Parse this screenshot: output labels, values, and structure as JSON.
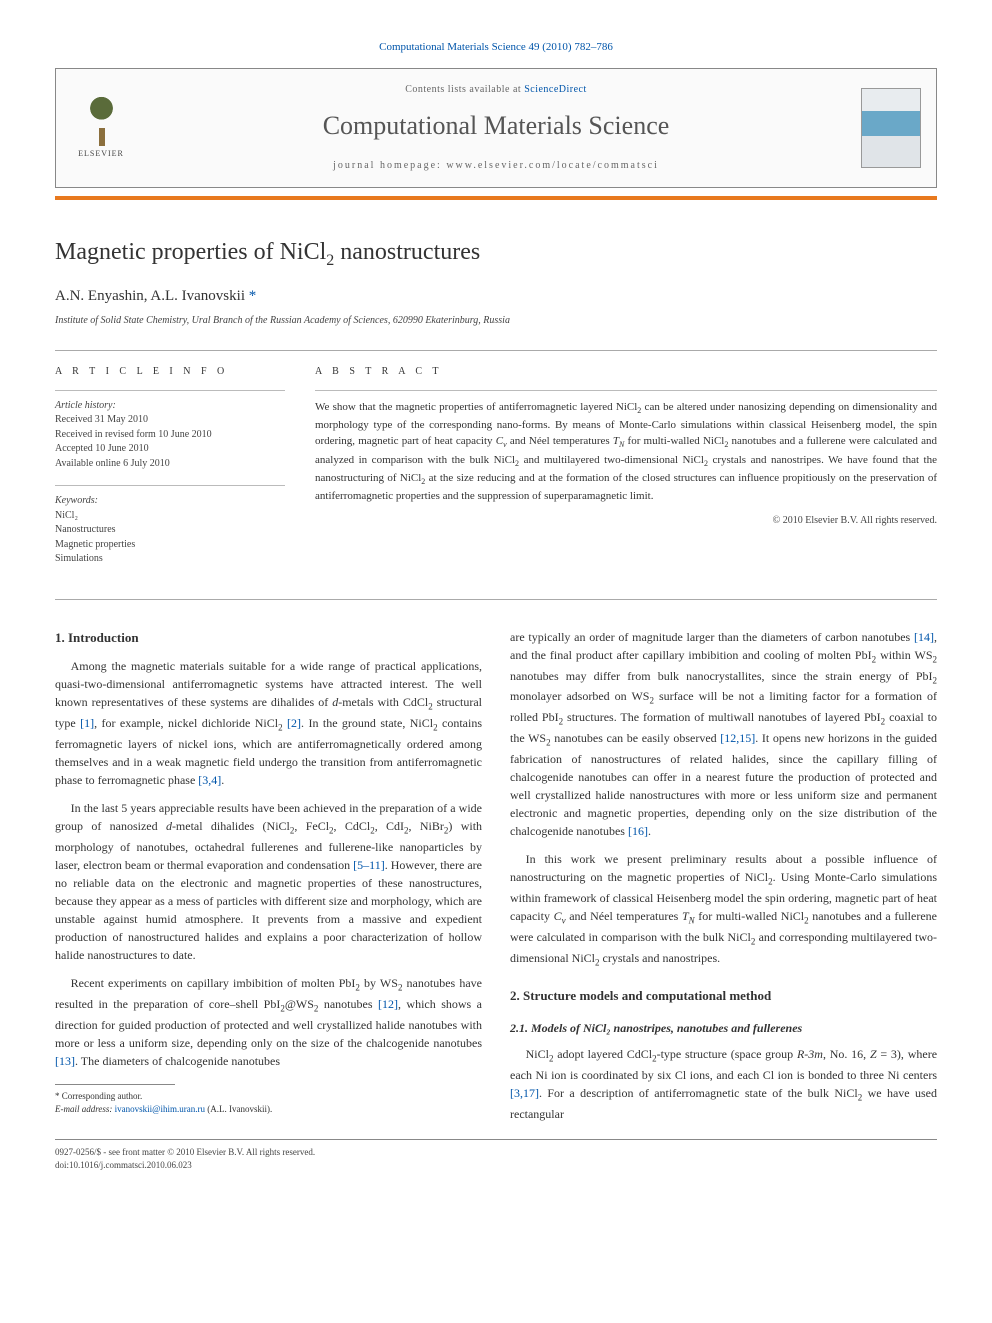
{
  "journal_ref": {
    "text_before": "Computational Materials Science 49 (2010) 782–786",
    "link_label": ""
  },
  "header": {
    "contents_prefix": "Contents lists available at ",
    "contents_link": "ScienceDirect",
    "journal_name": "Computational Materials Science",
    "homepage_prefix": "journal homepage: ",
    "homepage_url": "www.elsevier.com/locate/commatsci",
    "publisher": "ELSEVIER"
  },
  "title_html": "Magnetic properties of NiCl<sub>2</sub> nanostructures",
  "authors_html": "A.N. Enyashin, A.L. Ivanovskii <a href='#'>*</a>",
  "affiliation": "Institute of Solid State Chemistry, Ural Branch of the Russian Academy of Sciences, 620990 Ekaterinburg, Russia",
  "article_info": {
    "heading": "A R T I C L E   I N F O",
    "history_label": "Article history:",
    "history": [
      "Received 31 May 2010",
      "Received in revised form 10 June 2010",
      "Accepted 10 June 2010",
      "Available online 6 July 2010"
    ],
    "keywords_label": "Keywords:",
    "keywords": [
      "NiCl₂",
      "Nanostructures",
      "Magnetic properties",
      "Simulations"
    ]
  },
  "abstract": {
    "heading": "A B S T R A C T",
    "text_html": "We show that the magnetic properties of antiferromagnetic layered NiCl<sub>2</sub> can be altered under nanosizing depending on dimensionality and morphology type of the corresponding nano-forms. By means of Monte-Carlo simulations within classical Heisenberg model, the spin ordering, magnetic part of heat capacity <i>C<sub>v</sub></i> and Néel temperatures <i>T<sub>N</sub></i> for multi-walled NiCl<sub>2</sub> nanotubes and a fullerene were calculated and analyzed in comparison with the bulk NiCl<sub>2</sub> and multilayered two-dimensional NiCl<sub>2</sub> crystals and nanostripes. We have found that the nanostructuring of NiCl<sub>2</sub> at the size reducing and at the formation of the closed structures can influence propitiously on the preservation of antiferromagnetic properties and the suppression of superparamagnetic limit.",
    "copyright": "© 2010 Elsevier B.V. All rights reserved."
  },
  "sections": {
    "s1_title": "1. Introduction",
    "s1_p1_html": "Among the magnetic materials suitable for a wide range of practical applications, quasi-two-dimensional antiferromagnetic systems have attracted interest. The well known representatives of these systems are dihalides of <i>d</i>-metals with CdCl<sub>2</sub> structural type <a href='#'>[1]</a>, for example, nickel dichloride NiCl<sub>2</sub> <a href='#'>[2]</a>. In the ground state, NiCl<sub>2</sub> contains ferromagnetic layers of nickel ions, which are antiferromagnetically ordered among themselves and in a weak magnetic field undergo the transition from antiferromagnetic phase to ferromagnetic phase <a href='#'>[3,4]</a>.",
    "s1_p2_html": "In the last 5 years appreciable results have been achieved in the preparation of a wide group of nanosized <i>d</i>-metal dihalides (NiCl<sub>2</sub>, FeCl<sub>2</sub>, CdCl<sub>2</sub>, CdI<sub>2</sub>, NiBr<sub>2</sub>) with morphology of nanotubes, octahedral fullerenes and fullerene-like nanoparticles by laser, electron beam or thermal evaporation and condensation <a href='#'>[5–11]</a>. However, there are no reliable data on the electronic and magnetic properties of these nanostructures, because they appear as a mess of particles with different size and morphology, which are unstable against humid atmosphere. It prevents from a massive and expedient production of nanostructured halides and explains a poor characterization of hollow halide nanostructures to date.",
    "s1_p3_html": "Recent experiments on capillary imbibition of molten PbI<sub>2</sub> by WS<sub>2</sub> nanotubes have resulted in the preparation of core–shell PbI<sub>2</sub>@WS<sub>2</sub> nanotubes <a href='#'>[12]</a>, which shows a direction for guided production of protected and well crystallized halide nanotubes with more or less a uniform size, depending only on the size of the chalcogenide nanotubes <a href='#'>[13]</a>. The diameters of chalcogenide nanotubes",
    "s1_p4_html": "are typically an order of magnitude larger than the diameters of carbon nanotubes <a href='#'>[14]</a>, and the final product after capillary imbibition and cooling of molten PbI<sub>2</sub> within WS<sub>2</sub> nanotubes may differ from bulk nanocrystallites, since the strain energy of PbI<sub>2</sub> monolayer adsorbed on WS<sub>2</sub> surface will be not a limiting factor for a formation of rolled PbI<sub>2</sub> structures. The formation of multiwall nanotubes of layered PbI<sub>2</sub> coaxial to the WS<sub>2</sub> nanotubes can be easily observed <a href='#'>[12,15]</a>. It opens new horizons in the guided fabrication of nanostructures of related halides, since the capillary filling of chalcogenide nanotubes can offer in a nearest future the production of protected and well crystallized halide nanostructures with more or less uniform size and permanent electronic and magnetic properties, depending only on the size distribution of the chalcogenide nanotubes <a href='#'>[16]</a>.",
    "s1_p5_html": "In this work we present preliminary results about a possible influence of nanostructuring on the magnetic properties of NiCl<sub>2</sub>. Using Monte-Carlo simulations within framework of classical Heisenberg model the spin ordering, magnetic part of heat capacity <i>C<sub>v</sub></i> and Néel temperatures <i>T<sub>N</sub></i> for multi-walled NiCl<sub>2</sub> nanotubes and a fullerene were calculated in comparison with the bulk NiCl<sub>2</sub> and corresponding multilayered two-dimensional NiCl<sub>2</sub> crystals and nanostripes.",
    "s2_title": "2. Structure models and computational method",
    "s2_1_title": "2.1. Models of NiCl₂ nanostripes, nanotubes and fullerenes",
    "s2_1_p1_html": "NiCl<sub>2</sub> adopt layered CdCl<sub>2</sub>-type structure (space group <i>R-3m</i>, No. 16, <i>Z</i> = 3), where each Ni ion is coordinated by six Cl ions, and each Cl ion is bonded to three Ni centers <a href='#'>[3,17]</a>. For a description of antiferromagnetic state of the bulk NiCl<sub>2</sub> we have used rectangular"
  },
  "footnote": {
    "corr_label": "* Corresponding author.",
    "email_label": "E-mail address:",
    "email": "ivanovskii@ihim.uran.ru",
    "email_suffix": "(A.L. Ivanovskii)."
  },
  "bottom": {
    "left": "0927-0256/$ - see front matter © 2010 Elsevier B.V. All rights reserved.",
    "doi": "doi:10.1016/j.commatsci.2010.06.023"
  },
  "colors": {
    "accent_orange": "#e8791e",
    "link_blue": "#0055aa",
    "text": "#333333",
    "muted": "#666666",
    "border": "#888888"
  }
}
